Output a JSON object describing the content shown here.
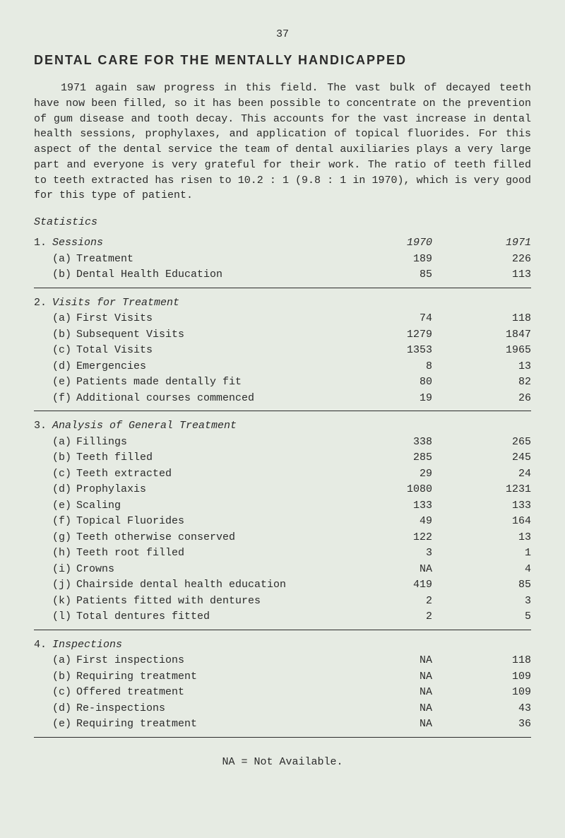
{
  "pageNumber": "37",
  "title": "DENTAL CARE FOR THE MENTALLY HANDICAPPED",
  "bodyText": "1971 again saw progress in this field. The vast bulk of decayed teeth have now been filled, so it has been possible to concentrate on the prevention of gum disease and tooth decay. This accounts for the vast increase in dental health sessions, prophylaxes, and application of topical fluorides. For this aspect of the dental service the team of dental auxiliaries plays a very large part and everyone is very grateful for their work. The ratio of teeth filled to teeth extracted has risen to 10.2 : 1 (9.8 : 1 in 1970), which is very good for this type of patient.",
  "statisticsLabel": "Statistics",
  "yearCols": {
    "y1970": "1970",
    "y1971": "1971"
  },
  "sections": {
    "s1": {
      "num": "1.",
      "title": "Sessions",
      "rows": [
        {
          "sub": "(a)",
          "label": "Treatment",
          "v1970": "189",
          "v1971": "226"
        },
        {
          "sub": "(b)",
          "label": "Dental Health Education",
          "v1970": "85",
          "v1971": "113"
        }
      ]
    },
    "s2": {
      "num": "2.",
      "title": "Visits for Treatment",
      "rows": [
        {
          "sub": "(a)",
          "label": "First Visits",
          "v1970": "74",
          "v1971": "118"
        },
        {
          "sub": "(b)",
          "label": "Subsequent Visits",
          "v1970": "1279",
          "v1971": "1847"
        },
        {
          "sub": "(c)",
          "label": "Total Visits",
          "v1970": "1353",
          "v1971": "1965"
        },
        {
          "sub": "(d)",
          "label": "Emergencies",
          "v1970": "8",
          "v1971": "13"
        },
        {
          "sub": "(e)",
          "label": "Patients made dentally fit",
          "v1970": "80",
          "v1971": "82"
        },
        {
          "sub": "(f)",
          "label": "Additional courses commenced",
          "v1970": "19",
          "v1971": "26"
        }
      ]
    },
    "s3": {
      "num": "3.",
      "title": "Analysis of General Treatment",
      "rows": [
        {
          "sub": "(a)",
          "label": "Fillings",
          "v1970": "338",
          "v1971": "265"
        },
        {
          "sub": "(b)",
          "label": "Teeth filled",
          "v1970": "285",
          "v1971": "245"
        },
        {
          "sub": "(c)",
          "label": "Teeth extracted",
          "v1970": "29",
          "v1971": "24"
        },
        {
          "sub": "(d)",
          "label": "Prophylaxis",
          "v1970": "1080",
          "v1971": "1231"
        },
        {
          "sub": "(e)",
          "label": "Scaling",
          "v1970": "133",
          "v1971": "133"
        },
        {
          "sub": "(f)",
          "label": "Topical Fluorides",
          "v1970": "49",
          "v1971": "164"
        },
        {
          "sub": "(g)",
          "label": "Teeth otherwise conserved",
          "v1970": "122",
          "v1971": "13"
        },
        {
          "sub": "(h)",
          "label": "Teeth root filled",
          "v1970": "3",
          "v1971": "1"
        },
        {
          "sub": "(i)",
          "label": "Crowns",
          "v1970": "NA",
          "v1971": "4"
        },
        {
          "sub": "(j)",
          "label": "Chairside dental health education",
          "v1970": "419",
          "v1971": "85"
        },
        {
          "sub": "(k)",
          "label": "Patients fitted with dentures",
          "v1970": "2",
          "v1971": "3"
        },
        {
          "sub": "(l)",
          "label": "Total dentures fitted",
          "v1970": "2",
          "v1971": "5"
        }
      ]
    },
    "s4": {
      "num": "4.",
      "title": "Inspections",
      "rows": [
        {
          "sub": "(a)",
          "label": "First inspections",
          "v1970": "NA",
          "v1971": "118"
        },
        {
          "sub": "(b)",
          "label": "Requiring treatment",
          "v1970": "NA",
          "v1971": "109"
        },
        {
          "sub": "(c)",
          "label": "Offered treatment",
          "v1970": "NA",
          "v1971": "109"
        },
        {
          "sub": "(d)",
          "label": "Re-inspections",
          "v1970": "NA",
          "v1971": "43"
        },
        {
          "sub": "(e)",
          "label": "Requiring treatment",
          "v1970": "NA",
          "v1971": "36"
        }
      ]
    }
  },
  "footnote": "NA     =     Not Available.",
  "colors": {
    "background": "#e6ebe3",
    "text": "#2a2a2a",
    "rule": "#2a2a2a"
  },
  "fonts": {
    "body": "Courier New",
    "title": "Arial",
    "bodySize": 15,
    "titleSize": 18
  }
}
